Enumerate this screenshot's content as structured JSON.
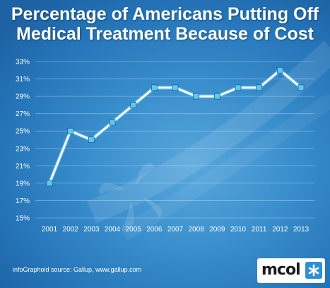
{
  "title_line1": "Percentage of Americans Putting Off",
  "title_line2": "Medical Treatment Because of Cost",
  "source_text": "infoGraphoid source:  Gallup, www.gallup.com",
  "logo_text": "mcol",
  "logo_icon": "snowflake-icon",
  "colors": {
    "background": "#3a8fcd",
    "line": "#ffffff",
    "marker_fill": "#5fc8f0",
    "logo_accent": "#2f8fd6"
  },
  "chart_data": {
    "type": "line",
    "title": "Percentage of Americans Putting Off Medical Treatment Because of Cost",
    "xlabel": "",
    "ylabel": "",
    "categories": [
      "2001",
      "2002",
      "2003",
      "2004",
      "2005",
      "2006",
      "2007",
      "2008",
      "2009",
      "2010",
      "2011",
      "2012",
      "2013"
    ],
    "values": [
      19,
      25,
      24,
      26,
      28,
      30,
      30,
      29,
      29,
      30,
      30,
      32,
      30
    ],
    "ylim": [
      15,
      33
    ],
    "yticks": [
      "15%",
      "17%",
      "19%",
      "21%",
      "23%",
      "25%",
      "27%",
      "29%",
      "31%",
      "33%"
    ],
    "ytick_values": [
      15,
      17,
      19,
      21,
      23,
      25,
      27,
      29,
      31,
      33
    ],
    "grid": true,
    "legend": "none"
  }
}
